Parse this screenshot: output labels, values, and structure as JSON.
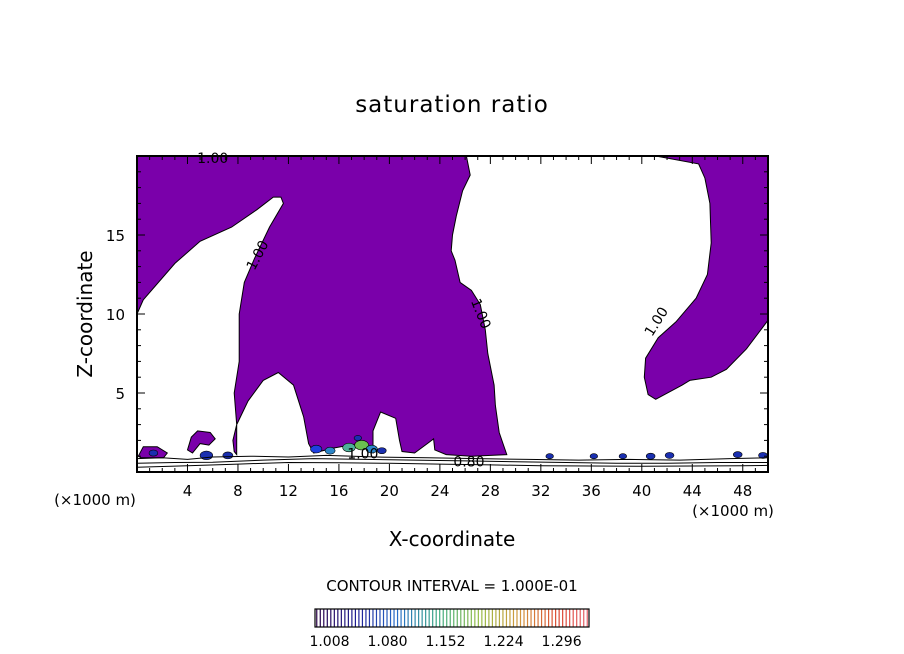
{
  "chart_data": {
    "type": "heatmap",
    "title": "saturation ratio",
    "xlabel": "X-coordinate",
    "ylabel": "Z-coordinate",
    "x_unit_left": "(×1000 m)",
    "x_unit_right": "(×1000 m)",
    "xlim": [
      0,
      50
    ],
    "ylim": [
      0,
      20
    ],
    "x_ticks": [
      4,
      8,
      12,
      16,
      20,
      24,
      28,
      32,
      36,
      40,
      44,
      48
    ],
    "y_ticks": [
      5,
      10,
      15
    ],
    "fill_color": "#7a00aa",
    "contour_interval_text": "CONTOUR INTERVAL = 1.000E-01",
    "colorbar": {
      "labels": [
        "1.008",
        "1.080",
        "1.152",
        "1.224",
        "1.296"
      ],
      "min": 0.99,
      "max": 1.33
    },
    "contour_labels": [
      {
        "text": "1.00",
        "x": 6.0,
        "y": 19.8,
        "angle": 0
      },
      {
        "text": "1.00",
        "x": 9.6,
        "y": 13.7,
        "angle": -62
      },
      {
        "text": "1.00",
        "x": 27.2,
        "y": 10.0,
        "angle": 68
      },
      {
        "text": "1.00",
        "x": 41.2,
        "y": 9.5,
        "angle": -58
      },
      {
        "text": "1.00",
        "x": 17.9,
        "y": 1.1,
        "angle": 0
      },
      {
        "text": "0.80",
        "x": 26.3,
        "y": 0.6,
        "angle": 0
      }
    ],
    "regions": [
      {
        "name": "main-cloud",
        "points": [
          [
            0,
            10
          ],
          [
            0,
            20
          ],
          [
            26.1,
            20
          ],
          [
            26.4,
            18.8
          ],
          [
            25.8,
            17.8
          ],
          [
            25.3,
            16.2
          ],
          [
            25.0,
            15.0
          ],
          [
            24.9,
            14.0
          ],
          [
            25.2,
            13.4
          ],
          [
            25.6,
            12.0
          ],
          [
            26.5,
            11.5
          ],
          [
            27.2,
            10.6
          ],
          [
            27.6,
            9.0
          ],
          [
            27.8,
            7.5
          ],
          [
            28.3,
            5.5
          ],
          [
            28.4,
            4.2
          ],
          [
            28.7,
            2.5
          ],
          [
            29.0,
            1.8
          ],
          [
            29.3,
            1.1
          ],
          [
            26.5,
            1.0
          ],
          [
            24.5,
            1.1
          ],
          [
            23.6,
            1.4
          ],
          [
            23.5,
            2.1
          ],
          [
            23.0,
            1.8
          ],
          [
            22.0,
            1.2
          ],
          [
            21.0,
            1.3
          ],
          [
            20.8,
            2.0
          ],
          [
            20.5,
            3.4
          ],
          [
            19.3,
            3.8
          ],
          [
            18.7,
            2.6
          ],
          [
            18.7,
            1.2
          ],
          [
            17.5,
            1.8
          ],
          [
            15.5,
            1.5
          ],
          [
            14.0,
            1.2
          ],
          [
            13.6,
            1.8
          ],
          [
            13.2,
            3.5
          ],
          [
            12.4,
            5.5
          ],
          [
            11.2,
            6.3
          ],
          [
            10.0,
            5.8
          ],
          [
            8.8,
            4.5
          ],
          [
            7.9,
            3.0
          ],
          [
            7.6,
            2.0
          ],
          [
            7.7,
            1.3
          ],
          [
            7.9,
            1.1
          ],
          [
            7.9,
            2.2
          ],
          [
            7.9,
            3.0
          ],
          [
            7.7,
            5.0
          ],
          [
            8.1,
            7.0
          ],
          [
            8.1,
            10.0
          ],
          [
            8.5,
            12.0
          ],
          [
            9.3,
            13.5
          ],
          [
            10.5,
            15.5
          ],
          [
            11.6,
            17.0
          ],
          [
            11.4,
            17.4
          ],
          [
            10.8,
            17.4
          ],
          [
            9.5,
            16.6
          ],
          [
            7.5,
            15.5
          ],
          [
            5.0,
            14.6
          ],
          [
            3.0,
            13.2
          ],
          [
            0.5,
            10.9
          ]
        ]
      },
      {
        "name": "right-cloud",
        "points": [
          [
            41.1,
            20
          ],
          [
            50,
            20
          ],
          [
            50,
            9.6
          ],
          [
            48.3,
            7.8
          ],
          [
            46.7,
            6.5
          ],
          [
            45.5,
            6.0
          ],
          [
            43.8,
            5.8
          ],
          [
            43.2,
            5.5
          ],
          [
            41.1,
            4.6
          ],
          [
            40.5,
            4.9
          ],
          [
            40.2,
            6.0
          ],
          [
            40.3,
            7.2
          ],
          [
            41.3,
            8.5
          ],
          [
            42.7,
            9.5
          ],
          [
            44.3,
            11.0
          ],
          [
            45.2,
            12.5
          ],
          [
            45.5,
            14.5
          ],
          [
            45.4,
            17.0
          ],
          [
            45.0,
            18.6
          ],
          [
            44.5,
            19.5
          ]
        ]
      },
      {
        "name": "left-blob",
        "points": [
          [
            4.0,
            1.4
          ],
          [
            4.3,
            2.2
          ],
          [
            4.8,
            2.6
          ],
          [
            5.8,
            2.5
          ],
          [
            6.2,
            2.1
          ],
          [
            5.7,
            1.7
          ],
          [
            5.0,
            1.8
          ],
          [
            4.4,
            1.2
          ]
        ]
      },
      {
        "name": "far-left-blob",
        "points": [
          [
            0.1,
            1.0
          ],
          [
            0.5,
            1.6
          ],
          [
            1.6,
            1.6
          ],
          [
            2.4,
            1.2
          ],
          [
            2.1,
            0.9
          ],
          [
            0.3,
            0.9
          ]
        ]
      }
    ],
    "blobs": [
      {
        "x": 5.5,
        "y": 1.05,
        "r": 0.5,
        "c": "#1a2fb0"
      },
      {
        "x": 7.2,
        "y": 1.05,
        "r": 0.4,
        "c": "#1a2fb0"
      },
      {
        "x": 14.2,
        "y": 1.45,
        "r": 0.45,
        "c": "#1f3fe0"
      },
      {
        "x": 15.3,
        "y": 1.35,
        "r": 0.4,
        "c": "#2c86c8"
      },
      {
        "x": 16.8,
        "y": 1.55,
        "r": 0.5,
        "c": "#4fb09a"
      },
      {
        "x": 17.8,
        "y": 1.7,
        "r": 0.55,
        "c": "#6ac050"
      },
      {
        "x": 18.6,
        "y": 1.45,
        "r": 0.45,
        "c": "#2c86c8"
      },
      {
        "x": 19.4,
        "y": 1.35,
        "r": 0.35,
        "c": "#1a2fb0"
      },
      {
        "x": 17.5,
        "y": 2.15,
        "r": 0.3,
        "c": "#1a2fb0"
      },
      {
        "x": 32.7,
        "y": 1.0,
        "r": 0.3,
        "c": "#1a2fb0"
      },
      {
        "x": 36.2,
        "y": 1.0,
        "r": 0.3,
        "c": "#1a2fb0"
      },
      {
        "x": 38.5,
        "y": 1.0,
        "r": 0.3,
        "c": "#1a2fb0"
      },
      {
        "x": 40.7,
        "y": 1.0,
        "r": 0.35,
        "c": "#1a2fb0"
      },
      {
        "x": 42.2,
        "y": 1.05,
        "r": 0.35,
        "c": "#1a2fb0"
      },
      {
        "x": 47.6,
        "y": 1.1,
        "r": 0.35,
        "c": "#1a2fb0"
      },
      {
        "x": 49.6,
        "y": 1.05,
        "r": 0.35,
        "c": "#1a2fb0"
      },
      {
        "x": 1.3,
        "y": 1.2,
        "r": 0.35,
        "c": "#1a2fb0"
      }
    ],
    "surface_lines": [
      [
        [
          0,
          0.55
        ],
        [
          3,
          0.6
        ],
        [
          6,
          0.62
        ],
        [
          10,
          0.75
        ],
        [
          14,
          0.85
        ],
        [
          18,
          0.8
        ],
        [
          22,
          0.75
        ],
        [
          26,
          0.7
        ],
        [
          30,
          0.65
        ],
        [
          34,
          0.6
        ],
        [
          38,
          0.55
        ],
        [
          42,
          0.55
        ],
        [
          46,
          0.6
        ],
        [
          50,
          0.6
        ]
      ],
      [
        [
          0,
          0.3
        ],
        [
          4,
          0.4
        ],
        [
          8,
          0.5
        ],
        [
          12,
          0.6
        ],
        [
          16,
          0.58
        ],
        [
          20,
          0.55
        ],
        [
          24,
          0.5
        ],
        [
          28,
          0.45
        ],
        [
          32,
          0.4
        ],
        [
          36,
          0.38
        ],
        [
          40,
          0.36
        ],
        [
          44,
          0.38
        ],
        [
          48,
          0.4
        ],
        [
          50,
          0.42
        ]
      ],
      [
        [
          0,
          0.85
        ],
        [
          2,
          0.9
        ],
        [
          4,
          0.8
        ],
        [
          6,
          0.95
        ],
        [
          9,
          1.0
        ],
        [
          12,
          0.95
        ],
        [
          15,
          1.05
        ],
        [
          19,
          0.95
        ],
        [
          23,
          0.9
        ],
        [
          27,
          0.85
        ],
        [
          31,
          0.8
        ],
        [
          35,
          0.75
        ],
        [
          39,
          0.8
        ],
        [
          43,
          0.75
        ],
        [
          47,
          0.85
        ],
        [
          50,
          0.9
        ]
      ]
    ]
  }
}
